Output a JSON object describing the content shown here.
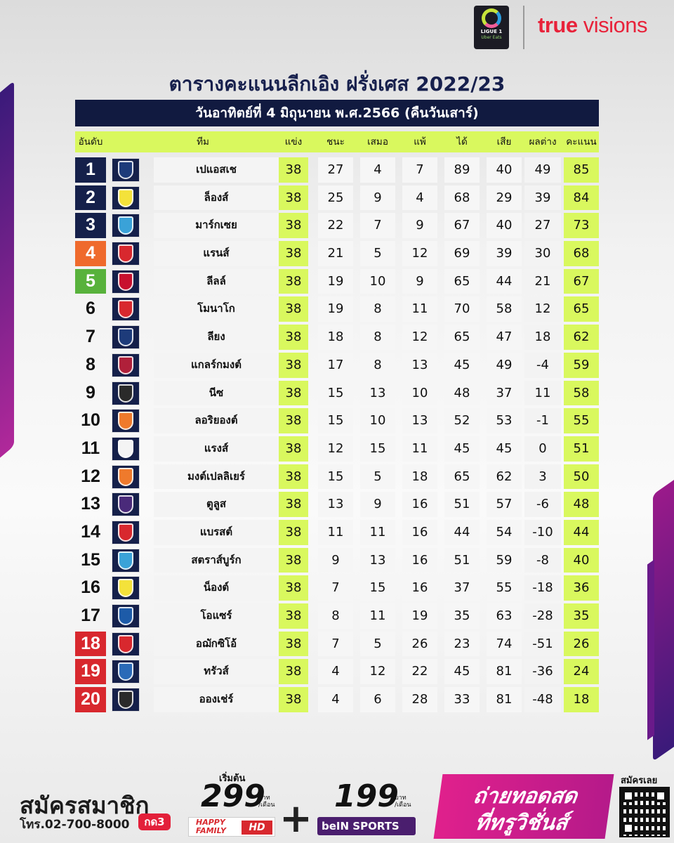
{
  "header": {
    "ligue_logo_line1": "LIGUE 1",
    "ligue_logo_line2": "Uber Eats",
    "broadcaster_bold": "true",
    "broadcaster_rest": " visions"
  },
  "title": "ตารางคะแนนลีกเอิง ฝรั่งเศส 2022/23",
  "date": "วันอาทิตย์ที่ 4 มิถุนายน พ.ศ.2566 (คืนวันเสาร์)",
  "columns": {
    "pos": "อันดับ",
    "team": "ทีม",
    "played": "แข่ง",
    "won": "ชนะ",
    "drawn": "เสมอ",
    "lost": "แพ้",
    "for": "ได้",
    "against": "เสีย",
    "gd": "ผลต่าง",
    "pts": "คะแนน"
  },
  "standings": [
    {
      "pos": "1",
      "team": "เปแอสเช",
      "p": "38",
      "w": "27",
      "d": "4",
      "l": "7",
      "f": "89",
      "a": "40",
      "gd": "49",
      "pts": "85",
      "zone": "dark",
      "logo_color": "#1d3b7a",
      "logo_icon": "psg-crest-icon"
    },
    {
      "pos": "2",
      "team": "ล็องส์",
      "p": "38",
      "w": "25",
      "d": "9",
      "l": "4",
      "f": "68",
      "a": "29",
      "gd": "39",
      "pts": "84",
      "zone": "dark",
      "logo_color": "#f4e23a",
      "logo_icon": "lens-crest-icon"
    },
    {
      "pos": "3",
      "team": "มาร์กเซย",
      "p": "38",
      "w": "22",
      "d": "7",
      "l": "9",
      "f": "67",
      "a": "40",
      "gd": "27",
      "pts": "73",
      "zone": "dark",
      "logo_color": "#3aa2d8",
      "logo_icon": "marseille-crest-icon"
    },
    {
      "pos": "4",
      "team": "แรนส์",
      "p": "38",
      "w": "21",
      "d": "5",
      "l": "12",
      "f": "69",
      "a": "39",
      "gd": "30",
      "pts": "68",
      "zone": "orange",
      "logo_color": "#d8282e",
      "logo_icon": "rennes-crest-icon"
    },
    {
      "pos": "5",
      "team": "ลีลล์",
      "p": "38",
      "w": "19",
      "d": "10",
      "l": "9",
      "f": "65",
      "a": "44",
      "gd": "21",
      "pts": "67",
      "zone": "green",
      "logo_color": "#c8102e",
      "logo_icon": "lille-crest-icon"
    },
    {
      "pos": "6",
      "team": "โมนาโก",
      "p": "38",
      "w": "19",
      "d": "8",
      "l": "11",
      "f": "70",
      "a": "58",
      "gd": "12",
      "pts": "65",
      "zone": "plain",
      "logo_color": "#d8282e",
      "logo_icon": "monaco-crest-icon"
    },
    {
      "pos": "7",
      "team": "ลียง",
      "p": "38",
      "w": "18",
      "d": "8",
      "l": "12",
      "f": "65",
      "a": "47",
      "gd": "18",
      "pts": "62",
      "zone": "plain",
      "logo_color": "#1d3b7a",
      "logo_icon": "lyon-crest-icon"
    },
    {
      "pos": "8",
      "team": "แกลร์กมงต์",
      "p": "38",
      "w": "17",
      "d": "8",
      "l": "13",
      "f": "45",
      "a": "49",
      "gd": "-4",
      "pts": "59",
      "zone": "plain",
      "logo_color": "#b0203a",
      "logo_icon": "clermont-crest-icon"
    },
    {
      "pos": "9",
      "team": "นีซ",
      "p": "38",
      "w": "15",
      "d": "13",
      "l": "10",
      "f": "48",
      "a": "37",
      "gd": "11",
      "pts": "58",
      "zone": "plain",
      "logo_color": "#2a2a2a",
      "logo_icon": "nice-crest-icon"
    },
    {
      "pos": "10",
      "team": "ลอริยองต์",
      "p": "38",
      "w": "15",
      "d": "10",
      "l": "13",
      "f": "52",
      "a": "53",
      "gd": "-1",
      "pts": "55",
      "zone": "plain",
      "logo_color": "#ef7a2c",
      "logo_icon": "lorient-crest-icon"
    },
    {
      "pos": "11",
      "team": "แรงส์",
      "p": "38",
      "w": "12",
      "d": "15",
      "l": "11",
      "f": "45",
      "a": "45",
      "gd": "0",
      "pts": "51",
      "zone": "plain",
      "logo_color": "#f4f4f4",
      "logo_icon": "reims-crest-icon"
    },
    {
      "pos": "12",
      "team": "มงต์เปลลิเยร์",
      "p": "38",
      "w": "15",
      "d": "5",
      "l": "18",
      "f": "65",
      "a": "62",
      "gd": "3",
      "pts": "50",
      "zone": "plain",
      "logo_color": "#ef7a2c",
      "logo_icon": "montpellier-crest-icon"
    },
    {
      "pos": "13",
      "team": "ตูลูส",
      "p": "38",
      "w": "13",
      "d": "9",
      "l": "16",
      "f": "51",
      "a": "57",
      "gd": "-6",
      "pts": "48",
      "zone": "plain",
      "logo_color": "#4a2a7a",
      "logo_icon": "toulouse-crest-icon"
    },
    {
      "pos": "14",
      "team": "แบรสต์",
      "p": "38",
      "w": "11",
      "d": "11",
      "l": "16",
      "f": "44",
      "a": "54",
      "gd": "-10",
      "pts": "44",
      "zone": "plain",
      "logo_color": "#d8282e",
      "logo_icon": "brest-crest-icon"
    },
    {
      "pos": "15",
      "team": "สตราส์บูร์ก",
      "p": "38",
      "w": "9",
      "d": "13",
      "l": "16",
      "f": "51",
      "a": "59",
      "gd": "-8",
      "pts": "40",
      "zone": "plain",
      "logo_color": "#3aa2d8",
      "logo_icon": "strasbourg-crest-icon"
    },
    {
      "pos": "16",
      "team": "น็องต์",
      "p": "38",
      "w": "7",
      "d": "15",
      "l": "16",
      "f": "37",
      "a": "55",
      "gd": "-18",
      "pts": "36",
      "zone": "plain",
      "logo_color": "#f4e23a",
      "logo_icon": "nantes-crest-icon"
    },
    {
      "pos": "17",
      "team": "โอแซร์",
      "p": "38",
      "w": "8",
      "d": "11",
      "l": "19",
      "f": "35",
      "a": "63",
      "gd": "-28",
      "pts": "35",
      "zone": "plain",
      "logo_color": "#1d5ba8",
      "logo_icon": "auxerre-crest-icon"
    },
    {
      "pos": "18",
      "team": "อฌักซิโอ้",
      "p": "38",
      "w": "7",
      "d": "5",
      "l": "26",
      "f": "23",
      "a": "74",
      "gd": "-51",
      "pts": "26",
      "zone": "red",
      "logo_color": "#d8282e",
      "logo_icon": "ajaccio-crest-icon"
    },
    {
      "pos": "19",
      "team": "ทรัวส์",
      "p": "38",
      "w": "4",
      "d": "12",
      "l": "22",
      "f": "45",
      "a": "81",
      "gd": "-36",
      "pts": "24",
      "zone": "red",
      "logo_color": "#2a6ab8",
      "logo_icon": "troyes-crest-icon"
    },
    {
      "pos": "20",
      "team": "อองเช่ร์",
      "p": "38",
      "w": "4",
      "d": "6",
      "l": "28",
      "f": "33",
      "a": "81",
      "gd": "-48",
      "pts": "18",
      "zone": "red",
      "logo_color": "#2a2a2a",
      "logo_icon": "angers-crest-icon"
    }
  ],
  "footer": {
    "subscribe": "สมัครสมาชิก",
    "phone": "โทร.02-700-8000",
    "press": "กด3",
    "start_from": "เริ่มต้น",
    "price1": "299",
    "price1_unit_a": "บาท",
    "price1_unit_b": "/เดือน",
    "happy_line1": "HAPPY",
    "happy_line2": "FAMILY",
    "hd": "HD",
    "plus": "+",
    "price2": "199",
    "price2_unit_a": "บาท",
    "price2_unit_b": "/เดือน",
    "bein": "beIN SPORTS",
    "promo_line1": "ถ่ายทอดสด",
    "promo_line2": "ที่ทรูวิชั่นส์",
    "subscribe_now": "สมัครเลย"
  },
  "colors": {
    "navy": "#111a40",
    "lime": "#d9f85e",
    "orange": "#ef6a2c",
    "green": "#58b23c",
    "red": "#d8282e",
    "magenta": "#e0208c"
  }
}
